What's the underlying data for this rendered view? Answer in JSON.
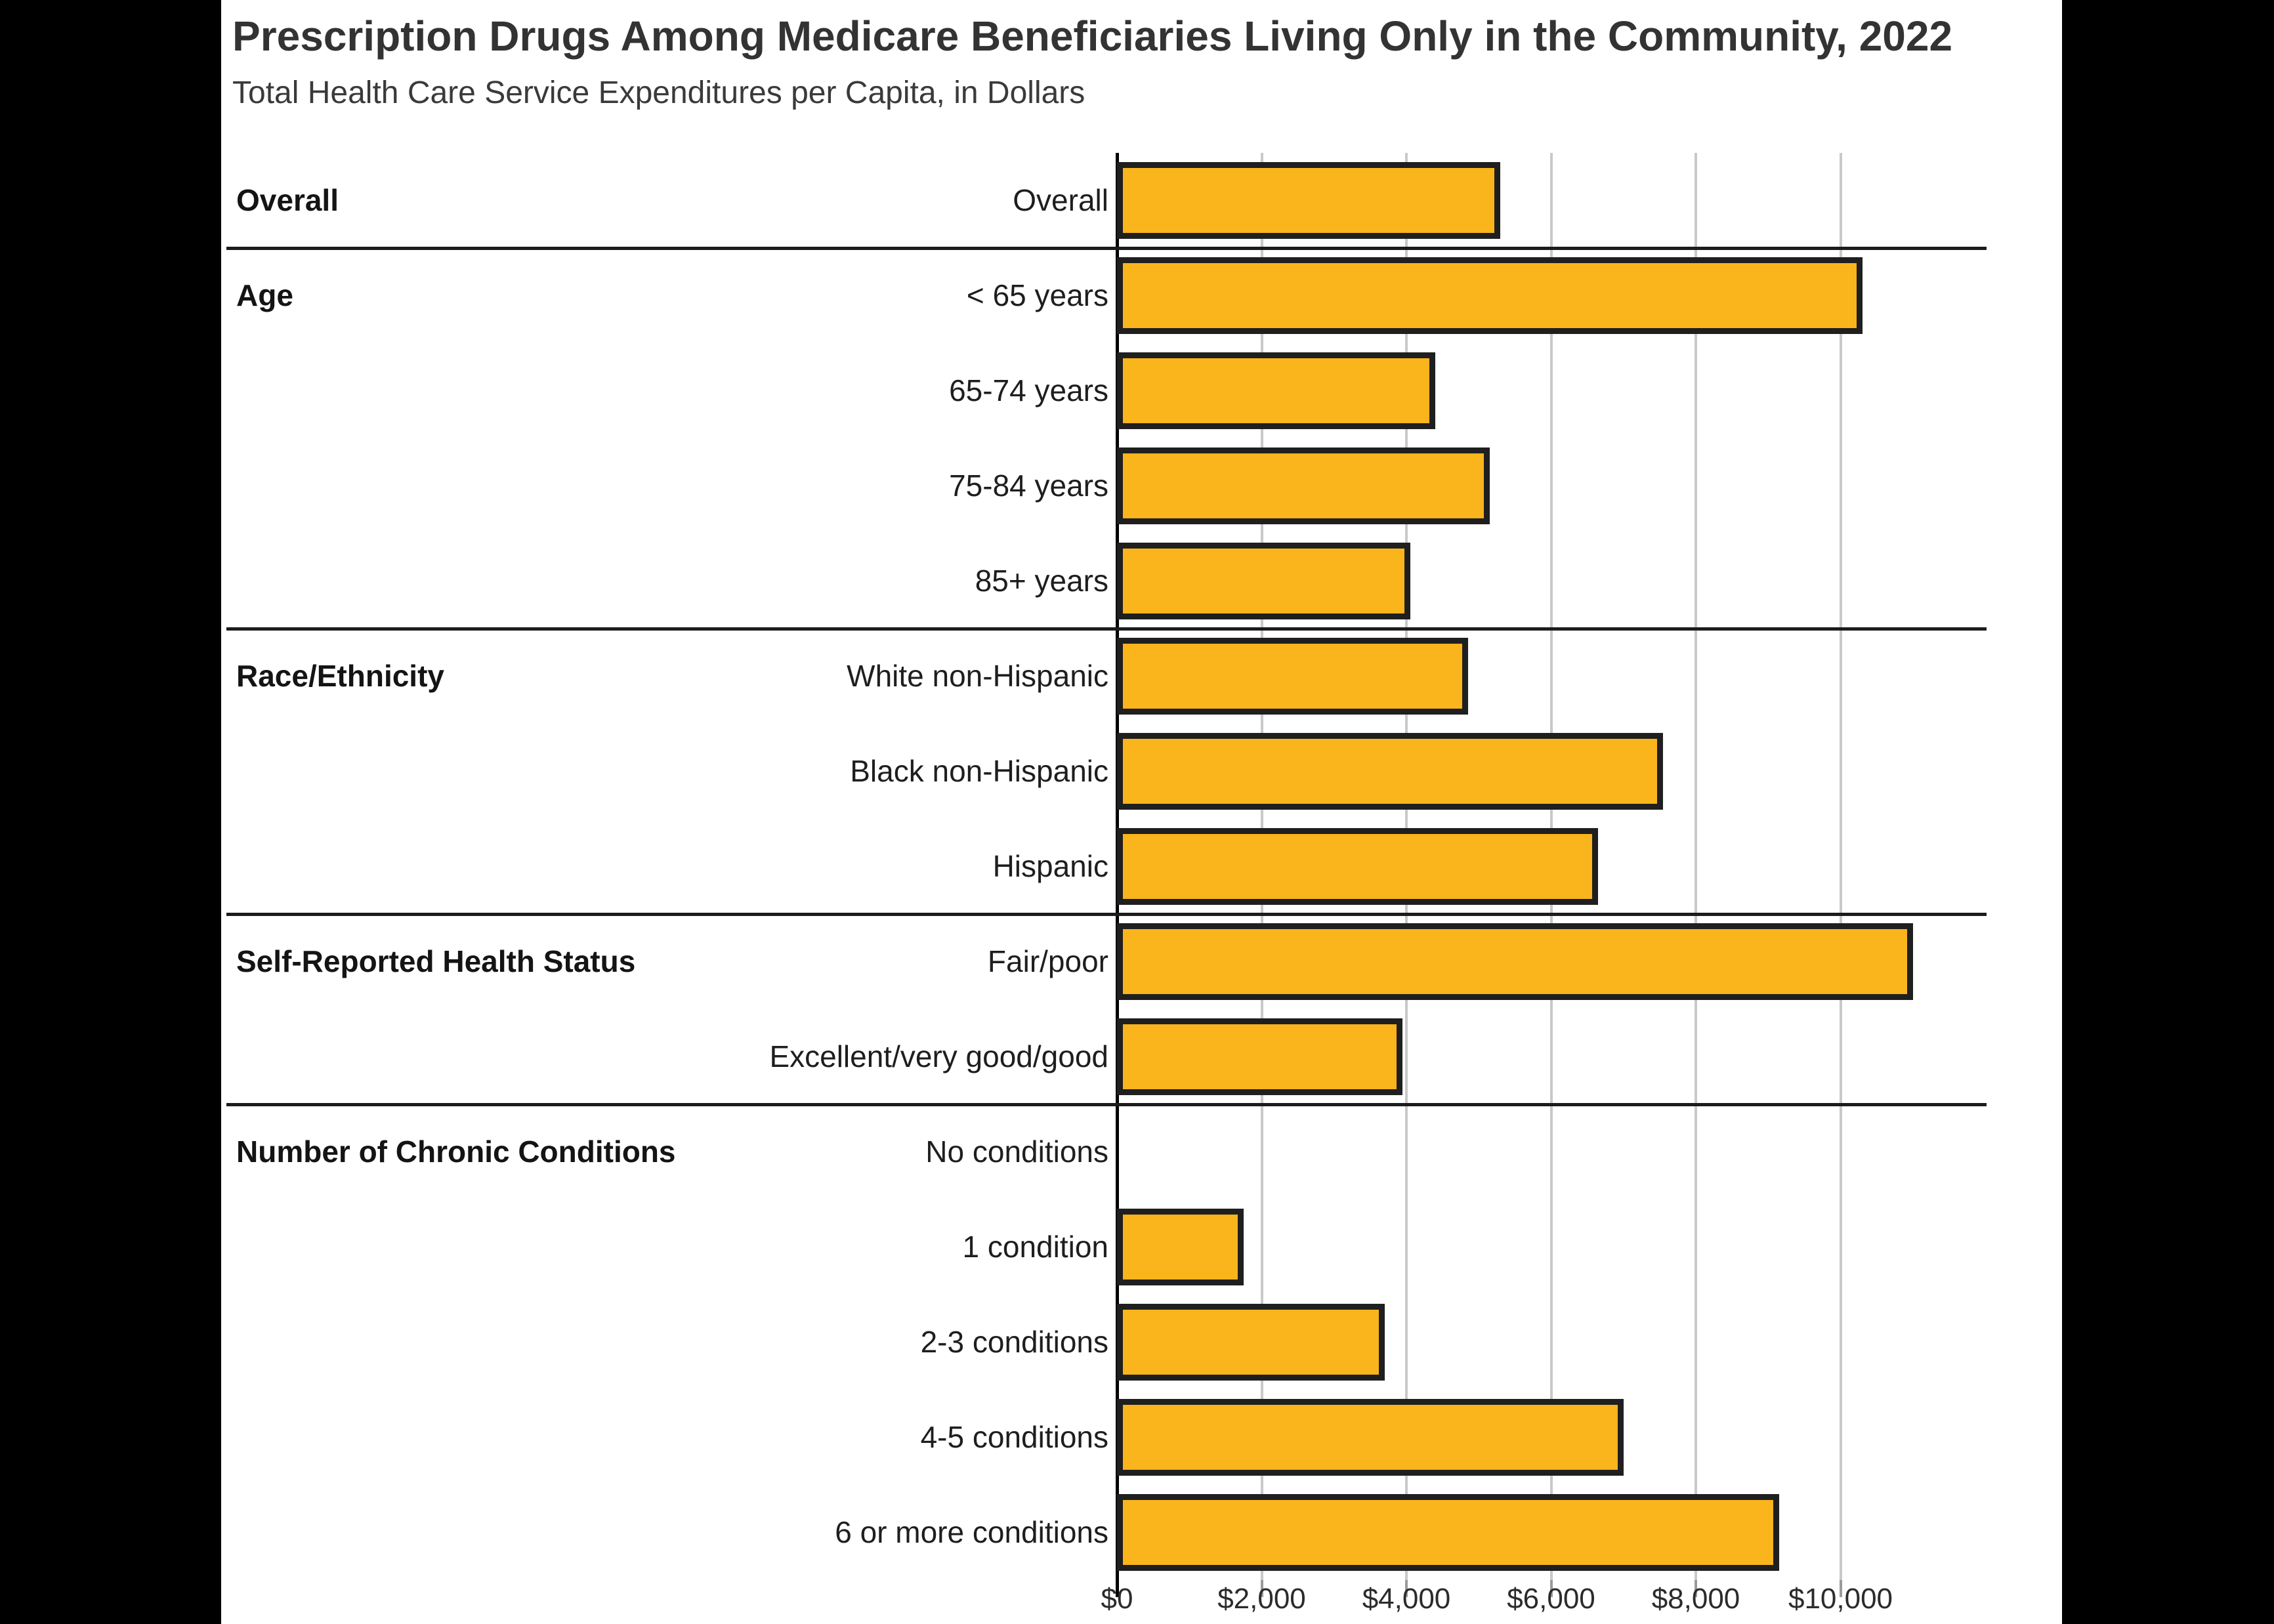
{
  "header": {
    "title": "Prescription Drugs Among Medicare Beneficiaries Living Only in the Community, 2022",
    "subtitle": "Total Health Care Service Expenditures per Capita, in Dollars"
  },
  "chart_data": {
    "type": "bar",
    "orientation": "horizontal",
    "title": "Prescription Drugs Among Medicare Beneficiaries Living Only in the Community, 2022",
    "subtitle": "Total Health Care Service Expenditures per Capita, in Dollars",
    "unit": "dollars per capita",
    "bar_color": "#FAB41C",
    "bar_border_color": "#1F1F1F",
    "grid": true,
    "x_axis": {
      "tick_labels": [
        "$0",
        "$2,000",
        "$4,000",
        "$6,000",
        "$8,000",
        "$10,000"
      ],
      "tick_values": [
        0,
        2000,
        4000,
        6000,
        8000,
        10000
      ],
      "xlim": [
        0,
        12000
      ]
    },
    "sections": [
      {
        "label": "Overall",
        "rows": [
          {
            "label": "Overall",
            "value": 5300
          }
        ]
      },
      {
        "label": "Age",
        "rows": [
          {
            "label": "< 65 years",
            "value": 10300
          },
          {
            "label": "65-74 years",
            "value": 4400
          },
          {
            "label": "75-84 years",
            "value": 5150
          },
          {
            "label": "85+ years",
            "value": 4050
          }
        ]
      },
      {
        "label": "Race/Ethnicity",
        "rows": [
          {
            "label": "White non-Hispanic",
            "value": 4850
          },
          {
            "label": "Black non-Hispanic",
            "value": 7550
          },
          {
            "label": "Hispanic",
            "value": 6650
          }
        ]
      },
      {
        "label": "Self-Reported Health Status",
        "rows": [
          {
            "label": "Fair/poor",
            "value": 11000
          },
          {
            "label": "Excellent/very good/good",
            "value": 3950
          }
        ]
      },
      {
        "label": "Number of Chronic Conditions",
        "rows": [
          {
            "label": "No conditions",
            "value": 0
          },
          {
            "label": "1 condition",
            "value": 1750
          },
          {
            "label": "2-3 conditions",
            "value": 3700
          },
          {
            "label": "4-5 conditions",
            "value": 7000
          },
          {
            "label": "6 or more conditions",
            "value": 9150
          }
        ]
      }
    ]
  }
}
